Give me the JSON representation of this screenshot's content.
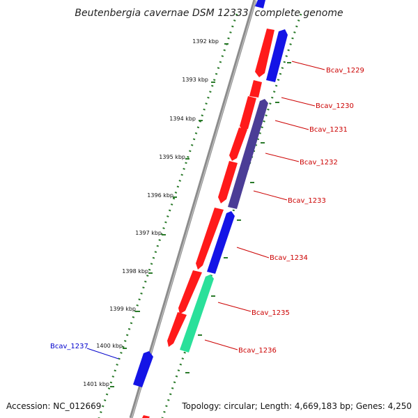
{
  "title": "Beutenbergia cavernae DSM 12333, complete genome",
  "footer": {
    "accession": "Accession: NC_012669",
    "topology": "Topology: circular; Length: 4,669,183 bp; Genes: 4,250"
  },
  "colors": {
    "backbone": "#8c8c8c",
    "tick_track": "#2a7a2a",
    "forward_gene": "#ff1a1a",
    "reverse_gene": "#1414e6",
    "purple_gene": "#4b3d96",
    "green_gene": "#2ae09a",
    "label_forward": "#cc0000",
    "label_reverse": "#0000cc"
  },
  "kbp_ticks": [
    {
      "label": "1392 kbp"
    },
    {
      "label": "1393 kbp"
    },
    {
      "label": "1394 kbp"
    },
    {
      "label": "1395 kbp"
    },
    {
      "label": "1396 kbp"
    },
    {
      "label": "1397 kbp"
    },
    {
      "label": "1398 kbp"
    },
    {
      "label": "1399 kbp"
    },
    {
      "label": "1400 kbp"
    },
    {
      "label": "1401 kbp"
    }
  ],
  "gene_labels": {
    "bcav_1229": "Bcav_1229",
    "bcav_1230": "Bcav_1230",
    "bcav_1231": "Bcav_1231",
    "bcav_1232": "Bcav_1232",
    "bcav_1233": "Bcav_1233",
    "bcav_1234": "Bcav_1234",
    "bcav_1235": "Bcav_1235",
    "bcav_1236": "Bcav_1236",
    "bcav_1237": "Bcav_1237"
  }
}
